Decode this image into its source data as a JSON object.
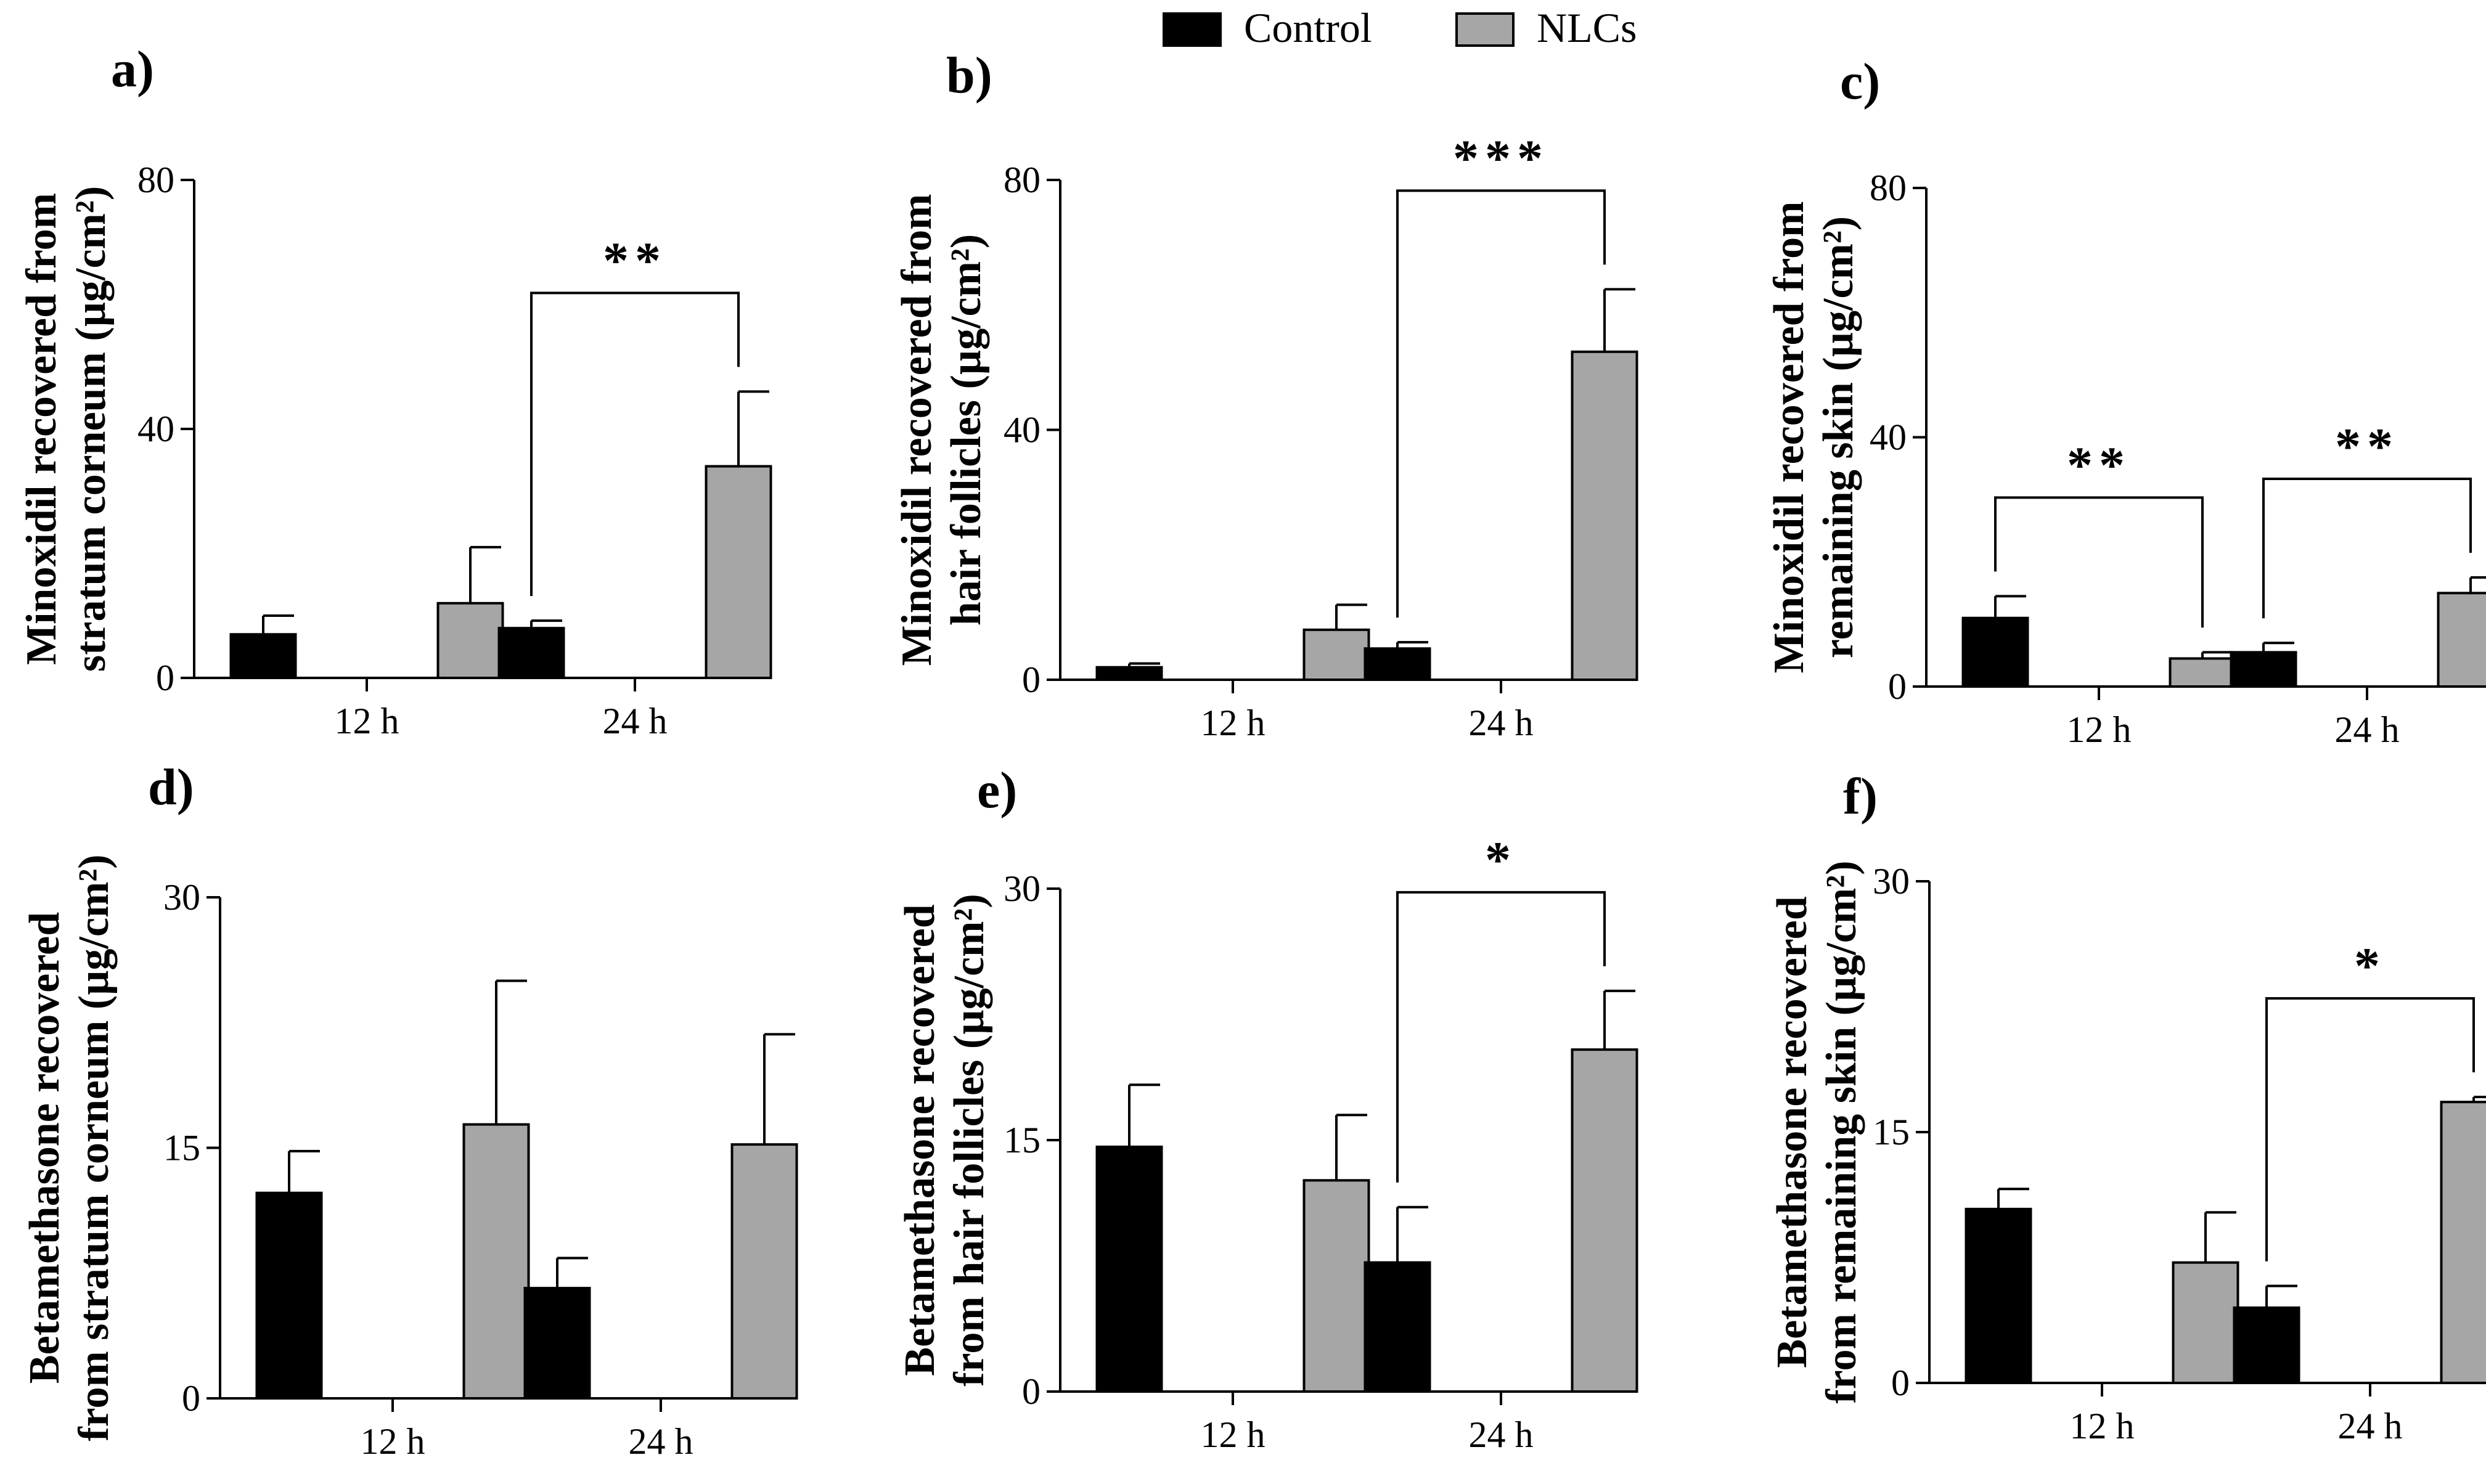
{
  "legend": {
    "items": [
      {
        "name": "Control",
        "color": "#000000"
      },
      {
        "name": "NLCs",
        "color": "#a6a6a6"
      }
    ]
  },
  "chart_data": [
    {
      "panel": "a)",
      "type": "bar",
      "ylabel_line1": "Minoxidil recovered from",
      "ylabel_line2": "stratum corneum (µg/cm²)",
      "categories": [
        "12 h",
        "24 h"
      ],
      "ylim": [
        0,
        80
      ],
      "yticks": [
        "0",
        "40",
        "80"
      ],
      "series": [
        {
          "name": "Control",
          "values": [
            7,
            8
          ],
          "errors": [
            3,
            1.2
          ]
        },
        {
          "name": "NLCs",
          "values": [
            12,
            34
          ],
          "errors": [
            9,
            12
          ]
        }
      ],
      "significance": [
        {
          "category": "24 h",
          "label": "**"
        }
      ]
    },
    {
      "panel": "b)",
      "type": "bar",
      "ylabel_line1": "Minoxidil recovered from",
      "ylabel_line2": "hair follicles (µg/cm²)",
      "categories": [
        "12 h",
        "24 h"
      ],
      "ylim": [
        0,
        80
      ],
      "yticks": [
        "0",
        "40",
        "80"
      ],
      "series": [
        {
          "name": "Control",
          "values": [
            2,
            5
          ],
          "errors": [
            0.6,
            1
          ]
        },
        {
          "name": "NLCs",
          "values": [
            8,
            52.5
          ],
          "errors": [
            4,
            10
          ]
        }
      ],
      "significance": [
        {
          "category": "24 h",
          "label": "***"
        }
      ]
    },
    {
      "panel": "c)",
      "type": "bar",
      "ylabel_line1": "Minoxidil recovered from",
      "ylabel_line2": "remaining skin (µg/cm²)",
      "categories": [
        "12 h",
        "24 h"
      ],
      "ylim": [
        0,
        80
      ],
      "yticks": [
        "0",
        "40",
        "80"
      ],
      "series": [
        {
          "name": "Control",
          "values": [
            11,
            5.5
          ],
          "errors": [
            3.5,
            1.5
          ]
        },
        {
          "name": "NLCs",
          "values": [
            4.5,
            15
          ],
          "errors": [
            1,
            2.5
          ]
        }
      ],
      "significance": [
        {
          "category": "12 h",
          "label": "**"
        },
        {
          "category": "24 h",
          "label": "**"
        }
      ]
    },
    {
      "panel": "d)",
      "type": "bar",
      "ylabel_line1": "Betamethasone recovered",
      "ylabel_line2": "from stratum corneum (µg/cm²)",
      "categories": [
        "12 h",
        "24 h"
      ],
      "ylim": [
        0,
        30
      ],
      "yticks": [
        "0",
        "15",
        "30"
      ],
      "series": [
        {
          "name": "Control",
          "values": [
            12.3,
            6.6
          ],
          "errors": [
            2.5,
            1.8
          ]
        },
        {
          "name": "NLCs",
          "values": [
            16.4,
            15.2
          ],
          "errors": [
            8.6,
            6.6
          ]
        }
      ],
      "significance": []
    },
    {
      "panel": "e)",
      "type": "bar",
      "ylabel_line1": "Betamethasone recovered",
      "ylabel_line2": "from hair follicles (µg/cm²)",
      "categories": [
        "12 h",
        "24 h"
      ],
      "ylim": [
        0,
        30
      ],
      "yticks": [
        "0",
        "15",
        "30"
      ],
      "series": [
        {
          "name": "Control",
          "values": [
            14.6,
            7.7
          ],
          "errors": [
            3.7,
            3.3
          ]
        },
        {
          "name": "NLCs",
          "values": [
            12.6,
            20.4
          ],
          "errors": [
            3.9,
            3.5
          ]
        }
      ],
      "significance": [
        {
          "category": "24 h",
          "label": "*"
        }
      ]
    },
    {
      "panel": "f)",
      "type": "bar",
      "ylabel_line1": "Betamethasone recovered",
      "ylabel_line2": "from remaining skin (µg/cm²)",
      "categories": [
        "12 h",
        "24 h"
      ],
      "ylim": [
        0,
        30
      ],
      "yticks": [
        "0",
        "15",
        "30"
      ],
      "series": [
        {
          "name": "Control",
          "values": [
            10.4,
            4.5
          ],
          "errors": [
            1.2,
            1.3
          ]
        },
        {
          "name": "NLCs",
          "values": [
            7.2,
            16.8
          ],
          "errors": [
            3,
            0.3
          ]
        }
      ],
      "significance": [
        {
          "category": "24 h",
          "label": "*"
        }
      ]
    }
  ]
}
